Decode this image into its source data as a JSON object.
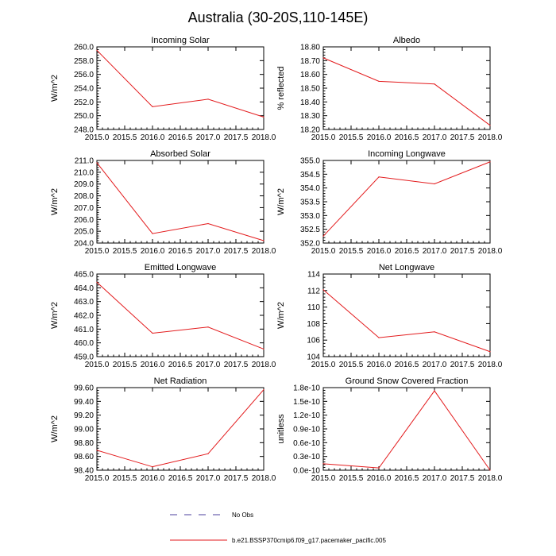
{
  "title": "Australia (30-20S,110-145E)",
  "legend": {
    "obs_label": "No Obs",
    "obs_color": "#4b3f9c",
    "model_label": "b.e21.BSSP370cmip6.f09_g17.pacemaker_pacific.005",
    "model_color": "#e31a1c"
  },
  "chart_data": [
    {
      "type": "line",
      "title": "Incoming Solar",
      "ylabel": "W/m^2",
      "x": [
        2015,
        2016,
        2017,
        2018
      ],
      "series": [
        {
          "values": [
            259.5,
            251.3,
            252.4,
            249.8
          ]
        }
      ],
      "xlim": [
        2015,
        2018
      ],
      "ylim": [
        248,
        260
      ],
      "xticks": [
        "2015.0",
        "2015.5",
        "2016.0",
        "2016.5",
        "2017.0",
        "2017.5",
        "2018.0"
      ],
      "yticks": [
        "248.0",
        "250.0",
        "252.0",
        "254.0",
        "256.0",
        "258.0",
        "260.0"
      ]
    },
    {
      "type": "line",
      "title": "Albedo",
      "ylabel": "% reflected",
      "x": [
        2015,
        2016,
        2017,
        2018
      ],
      "series": [
        {
          "values": [
            18.72,
            18.55,
            18.53,
            18.23
          ]
        }
      ],
      "xlim": [
        2015,
        2018
      ],
      "ylim": [
        18.2,
        18.8
      ],
      "xticks": [
        "2015.0",
        "2015.5",
        "2016.0",
        "2016.5",
        "2017.0",
        "2017.5",
        "2018.0"
      ],
      "yticks": [
        "18.20",
        "18.30",
        "18.40",
        "18.50",
        "18.60",
        "18.70",
        "18.80"
      ]
    },
    {
      "type": "line",
      "title": "Absorbed Solar",
      "ylabel": "W/m^2",
      "x": [
        2015,
        2016,
        2017,
        2018
      ],
      "series": [
        {
          "values": [
            210.8,
            204.8,
            205.65,
            204.2
          ]
        }
      ],
      "xlim": [
        2015,
        2018
      ],
      "ylim": [
        204,
        211
      ],
      "xticks": [
        "2015.0",
        "2015.5",
        "2016.0",
        "2016.5",
        "2017.0",
        "2017.5",
        "2018.0"
      ],
      "yticks": [
        "204.0",
        "205.0",
        "206.0",
        "207.0",
        "208.0",
        "209.0",
        "210.0",
        "211.0"
      ]
    },
    {
      "type": "line",
      "title": "Incoming Longwave",
      "ylabel": "W/m^2",
      "x": [
        2015,
        2016,
        2017,
        2018
      ],
      "series": [
        {
          "values": [
            352.25,
            354.4,
            354.15,
            354.95
          ]
        }
      ],
      "xlim": [
        2015,
        2018
      ],
      "ylim": [
        352,
        355
      ],
      "xticks": [
        "2015.0",
        "2015.5",
        "2016.0",
        "2016.5",
        "2017.0",
        "2017.5",
        "2018.0"
      ],
      "yticks": [
        "352.0",
        "352.5",
        "353.0",
        "353.5",
        "354.0",
        "354.5",
        "355.0"
      ]
    },
    {
      "type": "line",
      "title": "Emitted Longwave",
      "ylabel": "W/m^2",
      "x": [
        2015,
        2016,
        2017,
        2018
      ],
      "series": [
        {
          "values": [
            464.4,
            460.7,
            461.15,
            459.55
          ]
        }
      ],
      "xlim": [
        2015,
        2018
      ],
      "ylim": [
        459,
        465
      ],
      "xticks": [
        "2015.0",
        "2015.5",
        "2016.0",
        "2016.5",
        "2017.0",
        "2017.5",
        "2018.0"
      ],
      "yticks": [
        "459.0",
        "460.0",
        "461.0",
        "462.0",
        "463.0",
        "464.0",
        "465.0"
      ]
    },
    {
      "type": "line",
      "title": "Net Longwave",
      "ylabel": "W/m^2",
      "x": [
        2015,
        2016,
        2017,
        2018
      ],
      "series": [
        {
          "values": [
            112.1,
            106.3,
            107.0,
            104.6
          ]
        }
      ],
      "xlim": [
        2015,
        2018
      ],
      "ylim": [
        104,
        114
      ],
      "xticks": [
        "2015.0",
        "2015.5",
        "2016.0",
        "2016.5",
        "2017.0",
        "2017.5",
        "2018.0"
      ],
      "yticks": [
        "104",
        "106",
        "108",
        "110",
        "112",
        "114"
      ]
    },
    {
      "type": "line",
      "title": "Net Radiation",
      "ylabel": "W/m^2",
      "x": [
        2015,
        2016,
        2017,
        2018
      ],
      "series": [
        {
          "values": [
            98.69,
            98.45,
            98.64,
            99.57
          ]
        }
      ],
      "xlim": [
        2015,
        2018
      ],
      "ylim": [
        98.4,
        99.6
      ],
      "xticks": [
        "2015.0",
        "2015.5",
        "2016.0",
        "2016.5",
        "2017.0",
        "2017.5",
        "2018.0"
      ],
      "yticks": [
        "98.40",
        "98.60",
        "98.80",
        "99.00",
        "99.20",
        "99.40",
        "99.60"
      ]
    },
    {
      "type": "line",
      "title": "Ground Snow Covered Fraction",
      "ylabel": "unitless",
      "x": [
        2015,
        2016,
        2017,
        2018
      ],
      "series": [
        {
          "values": [
            1.4e-11,
            5e-12,
            1.73e-10,
            0
          ]
        }
      ],
      "xlim": [
        2015,
        2018
      ],
      "ylim": [
        0,
        1.8e-10
      ],
      "xticks": [
        "2015.0",
        "2015.5",
        "2016.0",
        "2016.5",
        "2017.0",
        "2017.5",
        "2018.0"
      ],
      "yticks": [
        "0.0e-10",
        "0.3e-10",
        "0.6e-10",
        "0.9e-10",
        "1.2e-10",
        "1.5e-10",
        "1.8e-10"
      ]
    }
  ]
}
